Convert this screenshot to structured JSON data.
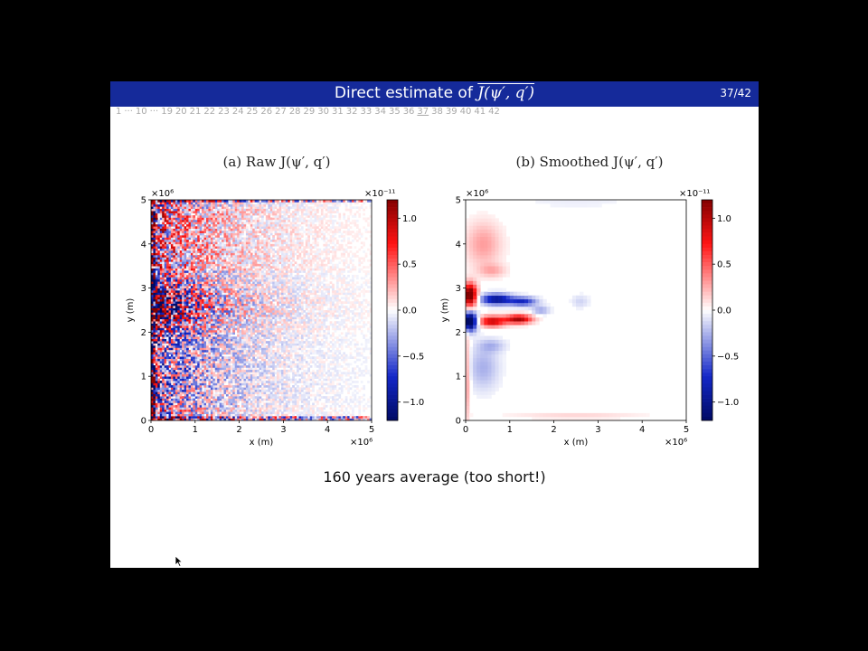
{
  "slide": {
    "title_prefix": "Direct estimate of ",
    "title_math": "J(ψ′, q′)",
    "page_number": "37/42",
    "nav_items": [
      "1",
      "···",
      "10",
      "···",
      "19",
      "20",
      "21",
      "22",
      "23",
      "24",
      "25",
      "26",
      "27",
      "28",
      "29",
      "30",
      "31",
      "32",
      "33",
      "34",
      "35",
      "36",
      "37",
      "38",
      "39",
      "40",
      "41",
      "42"
    ],
    "current_nav": "37",
    "caption": "160 years average (too short!)"
  },
  "colors": {
    "title_bar": "#152a9a",
    "positive": "#b2182b",
    "negative": "#2137a8",
    "neutral": "#ffffff"
  },
  "chart_data": [
    {
      "type": "heatmap",
      "title": "(a) Raw J(ψ′, q′)",
      "xlabel": "x (m)",
      "ylabel": "y (m)",
      "x_ticks": [
        "0",
        "1",
        "2",
        "3",
        "4",
        "5"
      ],
      "y_ticks": [
        "0",
        "1",
        "2",
        "3",
        "4",
        "5"
      ],
      "x_scale_label": "×10⁶",
      "y_scale_label": "×10⁶",
      "xlim": [
        0,
        5
      ],
      "ylim": [
        0,
        5
      ],
      "colorbar": {
        "ticks": [
          "1.0",
          "0.5",
          "0.0",
          "−0.5",
          "−1.0"
        ],
        "tick_values": [
          1.0,
          0.5,
          0.0,
          -0.5,
          -1.0
        ],
        "scale_label": "×10⁻¹¹",
        "range": [
          -1.2,
          1.2
        ],
        "colormap": "seismic"
      },
      "grid": false
    },
    {
      "type": "heatmap",
      "title": "(b) Smoothed J(ψ′, q′)",
      "xlabel": "x (m)",
      "ylabel": "y (m)",
      "x_ticks": [
        "0",
        "1",
        "2",
        "3",
        "4",
        "5"
      ],
      "y_ticks": [
        "0",
        "1",
        "2",
        "3",
        "4",
        "5"
      ],
      "x_scale_label": "×10⁶",
      "y_scale_label": "×10⁶",
      "xlim": [
        0,
        5
      ],
      "ylim": [
        0,
        5
      ],
      "colorbar": {
        "ticks": [
          "1.0",
          "0.5",
          "0.0",
          "−0.5",
          "−1.0"
        ],
        "tick_values": [
          1.0,
          0.5,
          0.0,
          -0.5,
          -1.0
        ],
        "scale_label": "×10⁻¹¹",
        "range": [
          -1.2,
          1.2
        ],
        "colormap": "seismic"
      },
      "grid": false
    }
  ]
}
